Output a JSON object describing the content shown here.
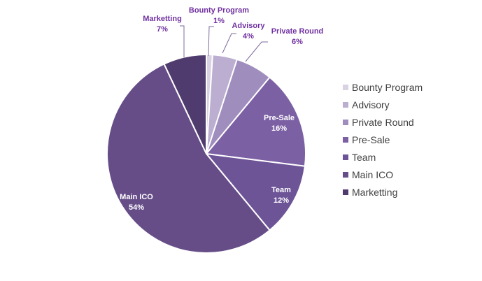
{
  "chart_data": {
    "type": "pie",
    "title": "",
    "legend_position": "right",
    "slices": [
      {
        "name": "Bounty Program",
        "value": 1,
        "label": "1%",
        "color": "#d9d2e3"
      },
      {
        "name": "Advisory",
        "value": 4,
        "label": "4%",
        "color": "#bbaed0"
      },
      {
        "name": "Private Round",
        "value": 6,
        "label": "6%",
        "color": "#9e8dbd"
      },
      {
        "name": "Pre-Sale",
        "value": 16,
        "label": "16%",
        "color": "#7c60a4"
      },
      {
        "name": "Team",
        "value": 12,
        "label": "12%",
        "color": "#6d5497"
      },
      {
        "name": "Main ICO",
        "value": 54,
        "label": "54%",
        "color": "#664d88"
      },
      {
        "name": "Marketting",
        "value": 7,
        "label": "7%",
        "color": "#4f3b6d"
      }
    ],
    "label_color_outside": "#7030a0",
    "label_color_inside": "#ffffff"
  }
}
